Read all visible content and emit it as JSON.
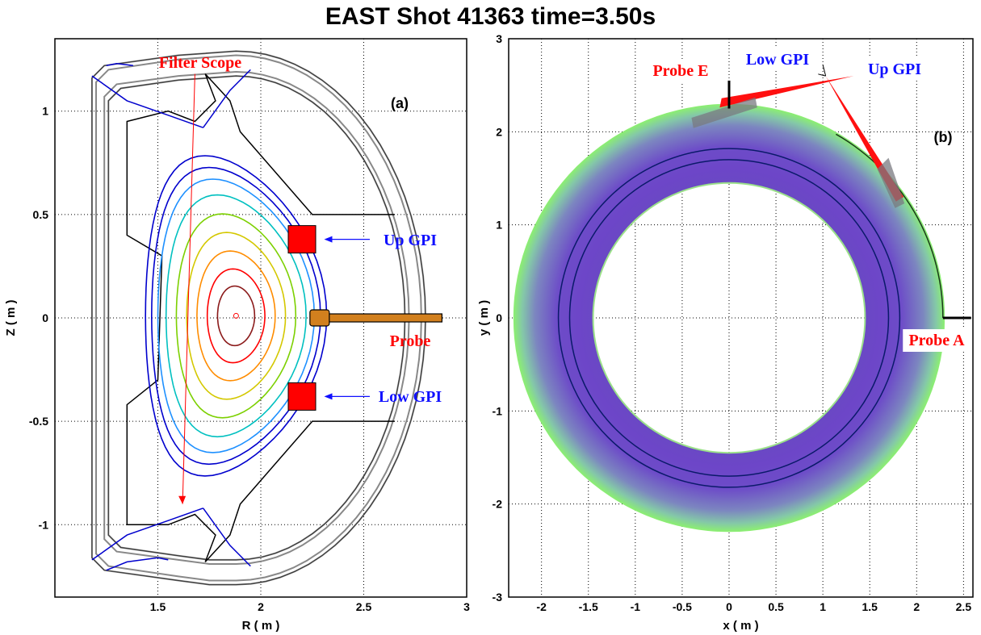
{
  "title": "EAST  Shot 41363 time=3.50s",
  "chart_data": [
    {
      "panel": "(a)",
      "type": "line",
      "xlabel": "R ( m )",
      "ylabel": "Z ( m )",
      "xlim": [
        1.0,
        3.0
      ],
      "ylim": [
        -1.35,
        1.35
      ],
      "xticks": [
        "1.5",
        "2",
        "2.5",
        "3"
      ],
      "xtick_values": [
        1.5,
        2.0,
        2.5,
        3.0
      ],
      "yticks": [
        "-1",
        "-0.5",
        "0",
        "0.5",
        "1"
      ],
      "ytick_values": [
        -1,
        -0.5,
        0,
        0.5,
        1
      ],
      "grid": true,
      "magnetic_axis": {
        "R": 1.88,
        "Z": 0.01
      },
      "flux_contours": [
        {
          "a": 0.09,
          "kappa": 1.6,
          "color": "#8b1a1a"
        },
        {
          "a": 0.14,
          "kappa": 1.62,
          "color": "#ff0000"
        },
        {
          "a": 0.19,
          "kappa": 1.65,
          "color": "#ff8c00"
        },
        {
          "a": 0.24,
          "kappa": 1.68,
          "color": "#d4c800"
        },
        {
          "a": 0.29,
          "kappa": 1.7,
          "color": "#7cd000"
        },
        {
          "a": 0.34,
          "kappa": 1.72,
          "color": "#00c0c0"
        },
        {
          "a": 0.38,
          "kappa": 1.74,
          "color": "#1e90ff"
        },
        {
          "a": 0.41,
          "kappa": 1.75,
          "color": "#0000cd"
        },
        {
          "a": 0.44,
          "kappa": 1.76,
          "color": "#0000cd"
        }
      ],
      "annotations": [
        {
          "text": "Filter Scope",
          "color": "#ff0000"
        },
        {
          "text": "Up  GPI",
          "color": "#1010ff"
        },
        {
          "text": "Probe",
          "color": "#ff0000"
        },
        {
          "text": "Low GPI",
          "color": "#1010ff"
        }
      ],
      "up_gpi": {
        "R": 2.2,
        "Z": 0.38
      },
      "low_gpi": {
        "R": 2.2,
        "Z": -0.38
      },
      "probe": {
        "R_start": 2.27,
        "R_end": 2.88,
        "Z": 0.0
      },
      "filter_scope_line": {
        "R": [
          1.68,
          1.62
        ],
        "Z": [
          1.18,
          -0.9
        ]
      }
    },
    {
      "panel": "(b)",
      "type": "area",
      "xlabel": "x ( m )",
      "ylabel": "y ( m )",
      "xlim": [
        -2.35,
        2.6
      ],
      "ylim": [
        -3.0,
        3.0
      ],
      "xticks": [
        "-2",
        "-1.5",
        "-1",
        "-0.5",
        "0",
        "0.5",
        "1",
        "1.5",
        "2",
        "2.5"
      ],
      "xtick_values": [
        -2,
        -1.5,
        -1,
        -0.5,
        0,
        0.5,
        1,
        1.5,
        2,
        2.5
      ],
      "yticks": [
        "-3",
        "-2",
        "-1",
        "0",
        "1",
        "2",
        "3"
      ],
      "ytick_values": [
        -3,
        -2,
        -1,
        0,
        1,
        2,
        3
      ],
      "grid": true,
      "torus": {
        "r_inner": 1.45,
        "r_outer": 2.3
      },
      "circles": [
        1.7,
        1.82
      ],
      "annotations": [
        {
          "text": "Probe E",
          "color": "#ff0000"
        },
        {
          "text": "Low GPI",
          "color": "#1010ff"
        },
        {
          "text": "Up GPI",
          "color": "#1010ff"
        },
        {
          "text": "Probe A",
          "color": "#ff0000"
        }
      ],
      "probe_e": {
        "x": 0.0,
        "y": [
          2.25,
          2.55
        ]
      },
      "probe_a": {
        "x": [
          2.28,
          2.58
        ],
        "y": 0.0
      },
      "gpi_apex": {
        "x": 1.03,
        "y": 2.6
      }
    }
  ]
}
